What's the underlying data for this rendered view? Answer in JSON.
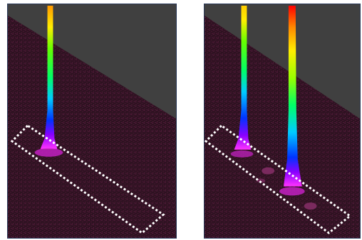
{
  "figure": {
    "panels": [
      {
        "label": "",
        "spikes": 1
      },
      {
        "label": "",
        "spikes": 2
      }
    ],
    "colors": {
      "background_plane": "#2e1221",
      "speckle": "#5a1d3f",
      "shadow_wall": "#404040",
      "dotted_outline": "#ffffff",
      "colormap": [
        "#ff00ff",
        "#0000ff",
        "#00ffff",
        "#00ff00",
        "#ffff00",
        "#ff8000",
        "#ff0000"
      ]
    }
  }
}
